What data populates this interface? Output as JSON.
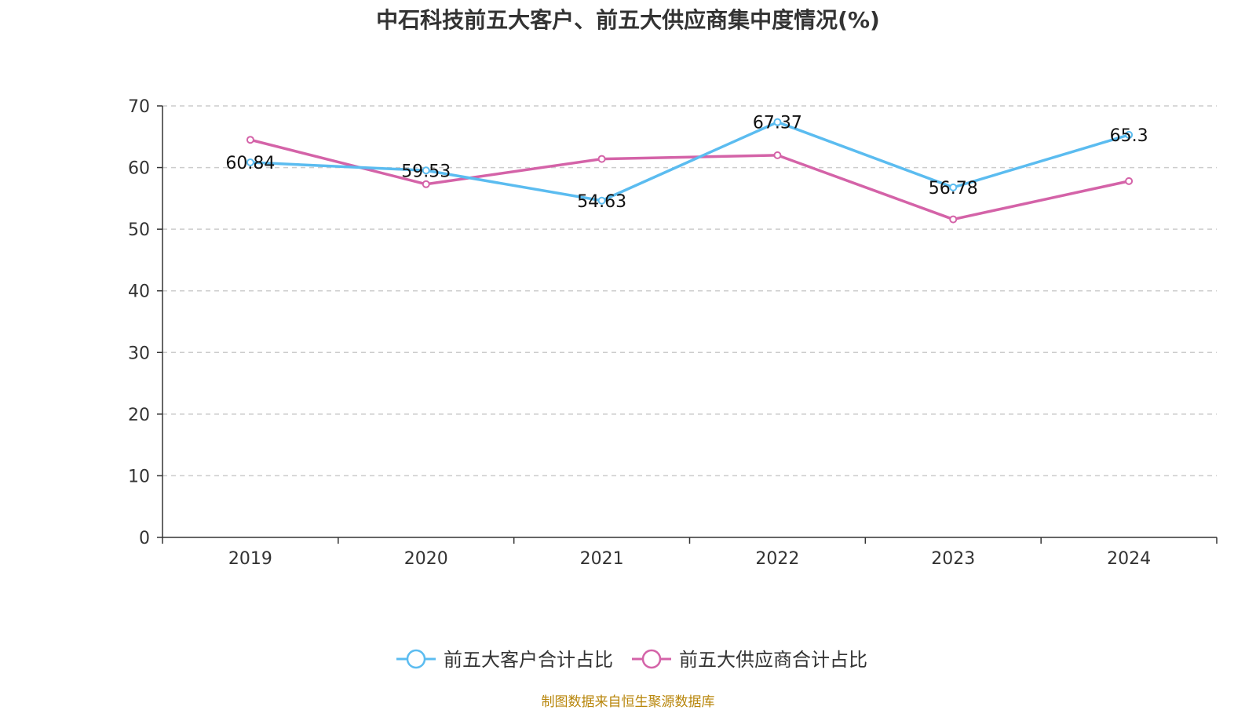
{
  "title": "中石科技前五大客户、前五大供应商集中度情况(%)",
  "source": "制图数据来自恒生聚源数据库",
  "chart_data": {
    "type": "line",
    "title": "中石科技前五大客户、前五大供应商集中度情况(%)",
    "categories": [
      "2019",
      "2020",
      "2021",
      "2022",
      "2023",
      "2024"
    ],
    "ylim": [
      0,
      70
    ],
    "yticks": [
      "0",
      "10",
      "20",
      "30",
      "40",
      "50",
      "60",
      "70"
    ],
    "grid": true,
    "legend_position": "bottom",
    "series": [
      {
        "name": "前五大客户合计占比",
        "color": "#5bbcf0",
        "values": [
          60.84,
          59.53,
          54.63,
          67.37,
          56.78,
          65.3
        ],
        "labels": [
          "60.84",
          "59.53",
          "54.63",
          "67.37",
          "56.78",
          "65.3"
        ]
      },
      {
        "name": "前五大供应商合计占比",
        "color": "#d463a8",
        "values": [
          64.5,
          57.3,
          61.4,
          62.0,
          51.6,
          57.8
        ]
      }
    ]
  }
}
